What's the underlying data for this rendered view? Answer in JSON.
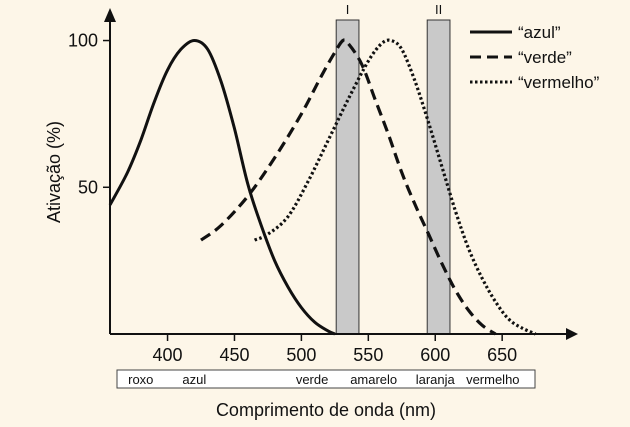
{
  "chart_data": {
    "type": "line",
    "xlabel": "Comprimento de onda (nm)",
    "ylabel": "Ativação (%)",
    "xlim": [
      357,
      682
    ],
    "ylim": [
      0,
      107
    ],
    "xticks": [
      400,
      450,
      500,
      550,
      600,
      650
    ],
    "yticks": [
      50,
      100
    ],
    "grid": false,
    "legend_position": "top-right",
    "bands": [
      {
        "label": "I",
        "x_start": 526,
        "x_end": 543
      },
      {
        "label": "II",
        "x_start": 594,
        "x_end": 611
      }
    ],
    "series": [
      {
        "name": "“azul”",
        "style": "solid",
        "x": [
          357,
          370,
          380,
          390,
          400,
          410,
          420,
          430,
          440,
          450,
          460,
          470,
          480,
          490,
          500,
          510,
          520,
          525
        ],
        "y": [
          44,
          55,
          66,
          79,
          90,
          97,
          100,
          97,
          86,
          70,
          51,
          37,
          25,
          16,
          9,
          4,
          1,
          0
        ]
      },
      {
        "name": "“verde”",
        "style": "dashed",
        "x": [
          425,
          440,
          460,
          480,
          500,
          515,
          525,
          531,
          535,
          545,
          555,
          565,
          575,
          585,
          595,
          605,
          615,
          625,
          635,
          645
        ],
        "y": [
          32,
          37,
          47,
          60,
          75,
          88,
          96,
          100,
          99,
          92,
          80,
          68,
          55,
          44,
          34,
          24,
          15,
          8,
          3,
          0
        ]
      },
      {
        "name": "“vermelho”",
        "style": "dotted",
        "x": [
          465,
          475,
          490,
          505,
          520,
          535,
          550,
          560,
          567,
          575,
          585,
          595,
          605,
          615,
          625,
          635,
          645,
          655,
          665,
          675
        ],
        "y": [
          32,
          34,
          40,
          52,
          66,
          80,
          93,
          99,
          100,
          97,
          86,
          72,
          57,
          42,
          29,
          19,
          11,
          5,
          2,
          0
        ]
      }
    ],
    "color_labels": [
      {
        "label": "roxo",
        "x": 380
      },
      {
        "label": "azul",
        "x": 420
      },
      {
        "label": "verde",
        "x": 508
      },
      {
        "label": "amarelo",
        "x": 554
      },
      {
        "label": "laranja",
        "x": 600
      },
      {
        "label": "vermelho",
        "x": 643
      }
    ]
  }
}
